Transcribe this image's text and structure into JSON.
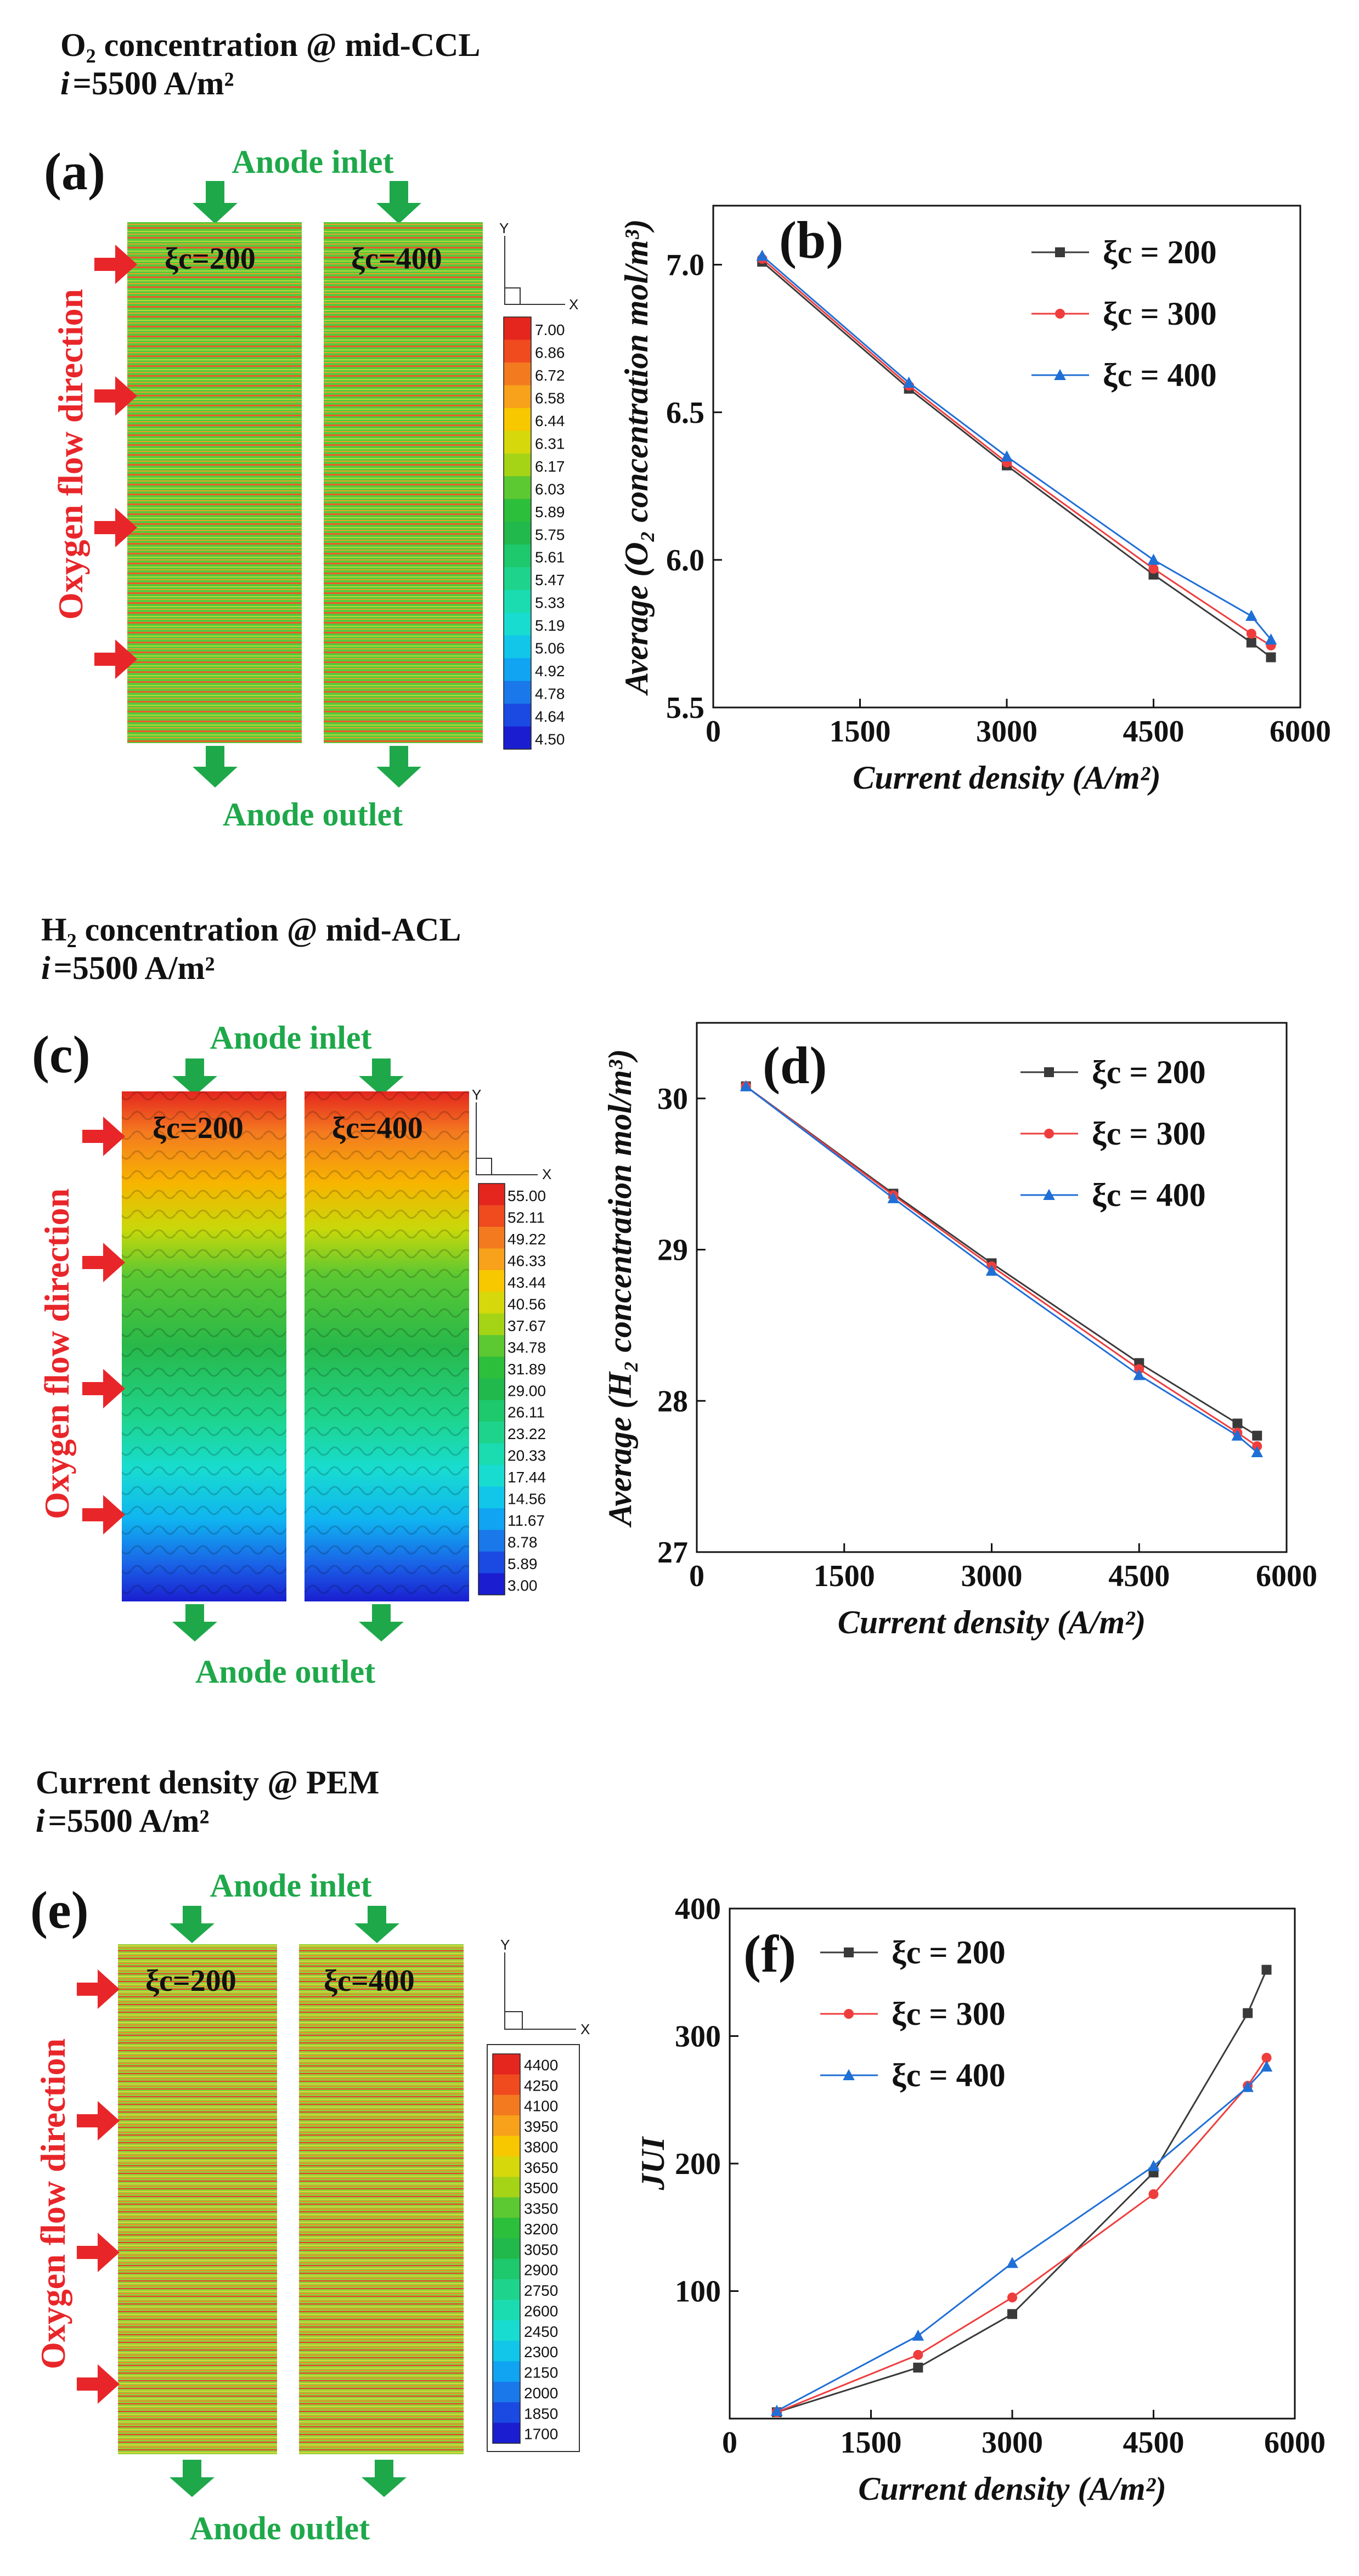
{
  "titles": {
    "a_line1": "O₂ concentration @ mid-CCL",
    "c_line1": "H₂ concentration @ mid-ACL",
    "e_line1": "Current density @ PEM",
    "i_value": "=5500 A/m²",
    "i_symbol": "i"
  },
  "panel_letters": [
    "(a)",
    "(b)",
    "(c)",
    "(d)",
    "(e)",
    "(f)"
  ],
  "flow_labels": {
    "anode_inlet": "Anode inlet",
    "anode_outlet": "Anode outlet",
    "oxygen_flow": "Oxygen flow direction"
  },
  "xi_labels": [
    "ξc=200",
    "ξc=400"
  ],
  "coord_axes": {
    "x": "X",
    "y": "Y"
  },
  "contours": [
    {
      "id": "a",
      "quantity": "O2 concentration",
      "legend_ticks": [
        "7.00",
        "6.86",
        "6.72",
        "6.58",
        "6.44",
        "6.31",
        "6.17",
        "6.03",
        "5.89",
        "5.75",
        "5.61",
        "5.47",
        "5.33",
        "5.19",
        "5.06",
        "4.92",
        "4.78",
        "4.64",
        "4.50"
      ]
    },
    {
      "id": "c",
      "quantity": "H2 concentration",
      "legend_ticks": [
        "55.00",
        "52.11",
        "49.22",
        "46.33",
        "43.44",
        "40.56",
        "37.67",
        "34.78",
        "31.89",
        "29.00",
        "26.11",
        "23.22",
        "20.33",
        "17.44",
        "14.56",
        "11.67",
        "8.78",
        "5.89",
        "3.00"
      ]
    },
    {
      "id": "e",
      "quantity": "Current density",
      "legend_ticks": [
        "4400",
        "4250",
        "4100",
        "3950",
        "3800",
        "3650",
        "3500",
        "3350",
        "3200",
        "3050",
        "2900",
        "2750",
        "2600",
        "2450",
        "2300",
        "2150",
        "2000",
        "1850",
        "1700"
      ]
    }
  ],
  "colors": {
    "series": [
      "#3a3a3a",
      "#ef3d3d",
      "#1f6fd6"
    ],
    "green": "#1ea84a",
    "red": "#e8262a"
  },
  "chart_data": [
    {
      "id": "b",
      "type": "line",
      "xlabel": "Current density (A/m²)",
      "ylabel": "Average (O₂ concentration mol/m³)",
      "xlim": [
        0,
        6000
      ],
      "ylim": [
        5.5,
        7.2
      ],
      "xticks": [
        0,
        1500,
        3000,
        4500,
        6000
      ],
      "yticks": [
        5.5,
        6.0,
        6.5,
        7.0
      ],
      "ytick_labels": [
        "5.5",
        "6.0",
        "6.5",
        "7.0"
      ],
      "legend_position": "top-right",
      "x": [
        500,
        2000,
        3000,
        4500,
        5500,
        5700
      ],
      "series": [
        {
          "name": "ξc = 200",
          "marker": "square",
          "values": [
            7.01,
            6.58,
            6.32,
            5.95,
            5.72,
            5.67
          ]
        },
        {
          "name": "ξc = 300",
          "marker": "circle",
          "values": [
            7.02,
            6.59,
            6.33,
            5.97,
            5.75,
            5.71
          ]
        },
        {
          "name": "ξc = 400",
          "marker": "triangle",
          "values": [
            7.03,
            6.6,
            6.35,
            6.0,
            5.81,
            5.73
          ]
        }
      ]
    },
    {
      "id": "d",
      "type": "line",
      "xlabel": "Current density (A/m²)",
      "ylabel": "Average (H₂ concentration mol/m³)",
      "xlim": [
        0,
        6000
      ],
      "ylim": [
        27,
        30.5
      ],
      "xticks": [
        0,
        1500,
        3000,
        4500,
        6000
      ],
      "yticks": [
        27,
        28,
        29,
        30
      ],
      "ytick_labels": [
        "27",
        "28",
        "29",
        "30"
      ],
      "legend_position": "top-right",
      "x": [
        500,
        2000,
        3000,
        4500,
        5500,
        5700
      ],
      "series": [
        {
          "name": "ξc = 200",
          "marker": "square",
          "values": [
            30.08,
            29.37,
            28.91,
            28.25,
            27.85,
            27.77
          ]
        },
        {
          "name": "ξc = 300",
          "marker": "circle",
          "values": [
            30.08,
            29.36,
            28.89,
            28.21,
            27.79,
            27.7
          ]
        },
        {
          "name": "ξc = 400",
          "marker": "triangle",
          "values": [
            30.08,
            29.34,
            28.86,
            28.17,
            27.77,
            27.66
          ]
        }
      ]
    },
    {
      "id": "f",
      "type": "line",
      "xlabel": "Current density (A/m²)",
      "ylabel": "JUI",
      "xlim": [
        0,
        6000
      ],
      "ylim": [
        0,
        400
      ],
      "xticks": [
        0,
        1500,
        3000,
        4500,
        6000
      ],
      "yticks": [
        100,
        200,
        300,
        400
      ],
      "ytick_labels": [
        "100",
        "200",
        "300",
        "400"
      ],
      "legend_position": "top-left",
      "x": [
        500,
        2000,
        3000,
        4500,
        5500,
        5700
      ],
      "series": [
        {
          "name": "ξc = 200",
          "marker": "square",
          "values": [
            5,
            40,
            82,
            193,
            318,
            352
          ]
        },
        {
          "name": "ξc = 300",
          "marker": "circle",
          "values": [
            5,
            50,
            95,
            176,
            261,
            283
          ]
        },
        {
          "name": "ξc = 400",
          "marker": "triangle",
          "values": [
            6,
            65,
            122,
            198,
            260,
            276
          ]
        }
      ]
    }
  ]
}
